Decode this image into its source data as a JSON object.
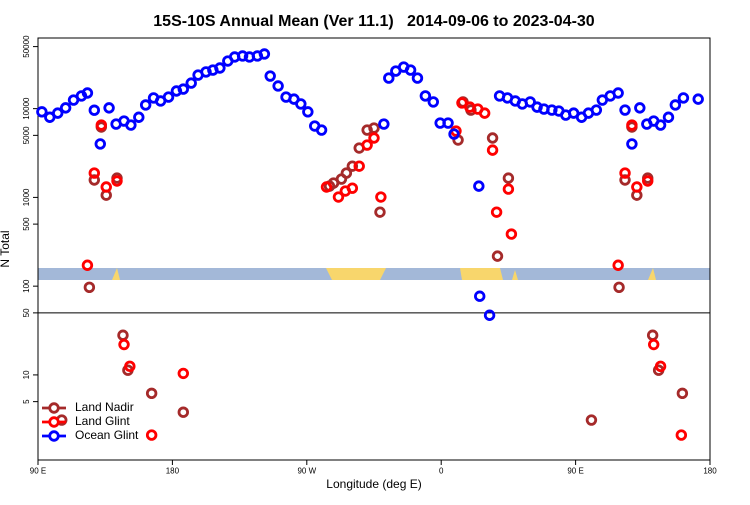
{
  "chart_data": {
    "type": "scatter",
    "title": "15S-10S Annual Mean (Ver 11.1)   2014-09-06 to 2023-04-30",
    "xlabel": "Longitude (deg E)",
    "ylabel": "N Total",
    "log_y": true,
    "legend": "lower left",
    "hline": 50,
    "xlim": [
      90,
      540
    ],
    "xticks": [
      {
        "value": 90,
        "label": "90 E"
      },
      {
        "value": 180,
        "label": "180"
      },
      {
        "value": 270,
        "label": "90 W"
      },
      {
        "value": 360,
        "label": "0"
      },
      {
        "value": 450,
        "label": "90 E"
      },
      {
        "value": 540,
        "label": "180"
      }
    ],
    "ylim": [
      1.1,
      62500
    ],
    "yticks": [
      5,
      10,
      50,
      100,
      500,
      1000,
      5000,
      10000,
      50000
    ],
    "series": [
      {
        "name": "Land Nadir",
        "color": "#a52a2a",
        "x": [
          105.9,
          124.4,
          127.7,
          132.4,
          135.7,
          142.9,
          146.9,
          150.2,
          166.1,
          187.3,
          285.2,
          287.9,
          293.2,
          296.5,
          300.5,
          305.1,
          310.4,
          315.0,
          319.0,
          371.3,
          374.6,
          379.9,
          394.4,
          397.7,
          405.0,
          460.6,
          479.1,
          483.1,
          487.7,
          491.0,
          498.3,
          501.6,
          505.6,
          521.5
        ],
        "values": [
          3.1,
          97,
          1570,
          6210,
          1060,
          1650,
          28,
          11.3,
          6.2,
          3.8,
          1340,
          1450,
          1610,
          1880,
          2250,
          3600,
          5740,
          6040,
          682,
          4430,
          11900,
          9640,
          4670,
          218,
          1650,
          3.1,
          97,
          1570,
          6210,
          1060,
          1650,
          28,
          11.3,
          6.2
        ]
      },
      {
        "name": "Land Glint",
        "color": "#ff0000",
        "x": [
          123.1,
          127.7,
          132.4,
          135.7,
          142.9,
          147.6,
          151.5,
          166.1,
          187.3,
          283.2,
          291.2,
          295.8,
          300.5,
          305.1,
          310.4,
          315.0,
          319.6,
          369.9,
          373.9,
          379.2,
          384.5,
          389.1,
          394.4,
          397.1,
          405.0,
          407.0,
          478.5,
          483.1,
          487.7,
          491.0,
          498.3,
          502.3,
          506.9,
          520.8
        ],
        "values": [
          172,
          1880,
          6530,
          1310,
          1530,
          22,
          12.5,
          2.1,
          10.4,
          1310,
          1010,
          1180,
          1270,
          2250,
          3890,
          4670,
          1010,
          5590,
          11600,
          10400,
          9890,
          8900,
          3410,
          682,
          1240,
          386,
          172,
          1880,
          6530,
          1310,
          1530,
          22,
          12.5,
          2.1
        ]
      },
      {
        "name": "Ocean Glint",
        "color": "#0000ff",
        "x": [
          92.6,
          97.9,
          103.2,
          108.5,
          113.8,
          119.1,
          123.1,
          127.7,
          131.7,
          137.6,
          142.3,
          147.6,
          152.2,
          157.5,
          162.1,
          167.4,
          172.1,
          177.4,
          182.7,
          187.3,
          192.6,
          197.2,
          202.5,
          207.1,
          211.8,
          217.1,
          221.7,
          227.0,
          231.6,
          236.9,
          241.6,
          245.5,
          250.8,
          256.1,
          261.4,
          266.0,
          270.7,
          275.3,
          279.9,
          321.6,
          324.9,
          329.6,
          334.9,
          339.5,
          344.1,
          349.4,
          354.7,
          359.3,
          364.6,
          368.6,
          385.2,
          385.8,
          392.4,
          399.1,
          404.4,
          409.6,
          414.3,
          419.6,
          424.2,
          428.8,
          434.1,
          438.8,
          443.4,
          448.7,
          454.0,
          458.6,
          463.9,
          467.9,
          473.2,
          478.5,
          483.1,
          487.7,
          493.0,
          497.7,
          502.3,
          506.9,
          512.2,
          516.8,
          522.2,
          532.1
        ],
        "values": [
          9200,
          8000,
          8900,
          10200,
          12500,
          13900,
          15000,
          9600,
          4000,
          10200,
          6700,
          7250,
          6530,
          8000,
          11000,
          13200,
          12200,
          13500,
          15800,
          16600,
          19400,
          23900,
          25900,
          27200,
          28700,
          34400,
          38200,
          39200,
          38200,
          39200,
          41300,
          23300,
          18000,
          13500,
          12800,
          11300,
          9200,
          6370,
          5740,
          6700,
          22100,
          26500,
          29400,
          27200,
          22100,
          13900,
          11900,
          6880,
          6880,
          5170,
          1340,
          77,
          47,
          13900,
          13200,
          12200,
          11300,
          11900,
          10400,
          9890,
          9640,
          9400,
          8470,
          8900,
          8000,
          8900,
          9640,
          12500,
          13900,
          15000,
          9640,
          4000,
          10200,
          6700,
          7250,
          6530,
          8000,
          11000,
          13200,
          12800
        ]
      }
    ]
  }
}
